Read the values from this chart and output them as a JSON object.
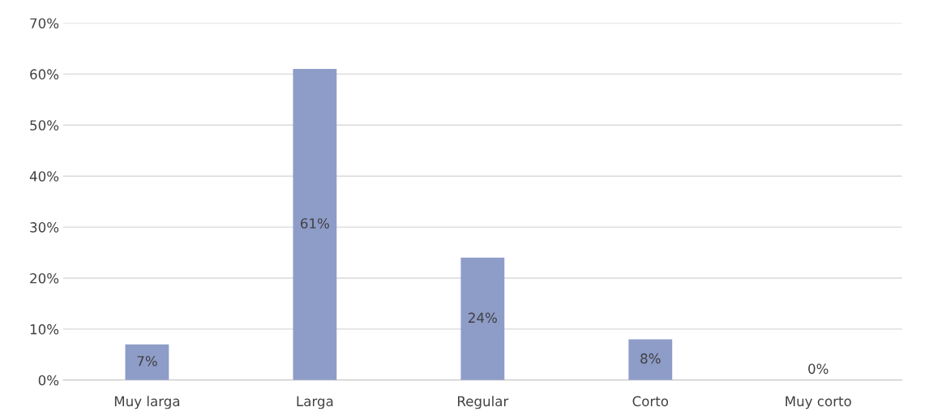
{
  "chart_data": {
    "type": "bar",
    "categories": [
      "Muy larga",
      "Larga",
      "Regular",
      "Corto",
      "Muy corto"
    ],
    "values": [
      7,
      61,
      24,
      8,
      0
    ],
    "value_labels": [
      "7%",
      "61%",
      "24%",
      "8%",
      "0%"
    ],
    "color": "#8e9cc8",
    "ylim": [
      0,
      70
    ],
    "yticks": [
      {
        "value": 0,
        "label": "0%"
      },
      {
        "value": 10,
        "label": "10%"
      },
      {
        "value": 20,
        "label": "20%"
      },
      {
        "value": 30,
        "label": "30%"
      },
      {
        "value": 40,
        "label": "40%"
      },
      {
        "value": 50,
        "label": "50%"
      },
      {
        "value": 60,
        "label": "60%"
      },
      {
        "value": 70,
        "label": "70%"
      }
    ],
    "grid": "y"
  }
}
